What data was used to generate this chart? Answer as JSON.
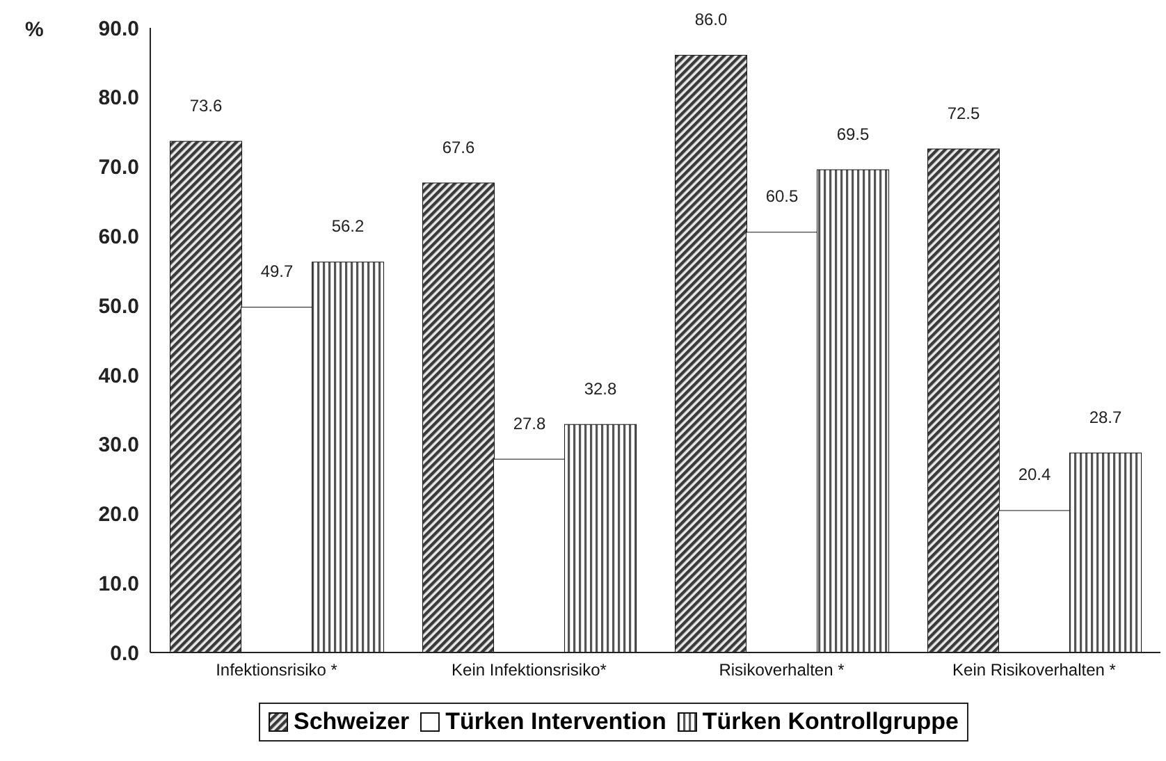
{
  "chart_data": {
    "type": "bar",
    "ylabel": "%",
    "categories": [
      "Infektionsrisiko *",
      "Kein Infektionsrisiko*",
      "Risikoverhalten *",
      "Kein Risikoverhalten *"
    ],
    "series": [
      {
        "name": "Schweizer",
        "color": "#3a3a3a",
        "values": [
          73.6,
          67.6,
          86.0,
          72.5
        ],
        "value_labels": [
          "73.6",
          "67.6",
          "86.0",
          "72.5"
        ]
      },
      {
        "name": "Türken Intervention",
        "color": "#ffffff",
        "values": [
          49.7,
          27.8,
          60.5,
          20.4
        ],
        "value_labels": [
          "49.7",
          "27.8",
          "60.5",
          "20.4"
        ]
      },
      {
        "name": "Türken Kontrollgruppe",
        "color": "#555555",
        "values": [
          56.2,
          32.8,
          69.5,
          28.7
        ],
        "value_labels": [
          "56.2",
          "32.8",
          "69.5",
          "28.7"
        ]
      }
    ],
    "ylim": [
      0,
      90
    ],
    "yticks": [
      {
        "value": 0,
        "label": "0.0"
      },
      {
        "value": 10,
        "label": "10.0"
      },
      {
        "value": 20,
        "label": "20.0"
      },
      {
        "value": 30,
        "label": "30.0"
      },
      {
        "value": 40,
        "label": "40.0"
      },
      {
        "value": 50,
        "label": "50.0"
      },
      {
        "value": 60,
        "label": "60.0"
      },
      {
        "value": 70,
        "label": "70.0"
      },
      {
        "value": 80,
        "label": "80.0"
      },
      {
        "value": 90,
        "label": "90.0"
      }
    ],
    "grid": false,
    "legend": "bottom"
  }
}
